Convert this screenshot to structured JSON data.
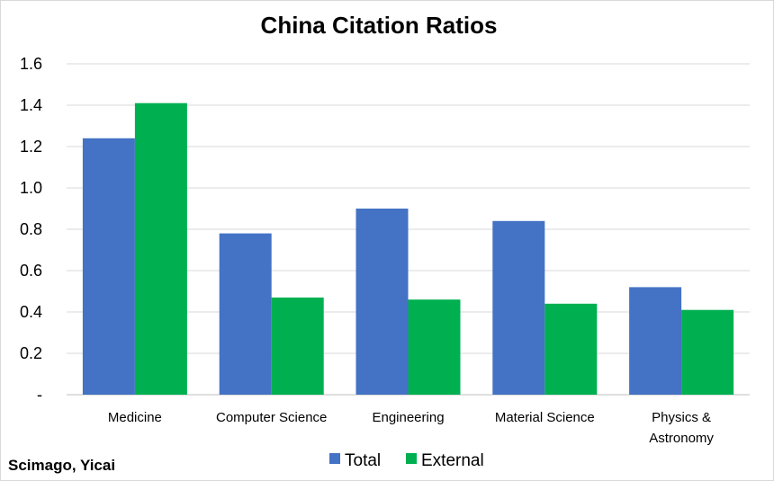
{
  "colors": {
    "total": "#4472c4",
    "external": "#00b050"
  },
  "source_note": "Scimago, Yicai",
  "chart_data": {
    "type": "bar",
    "title": "China Citation Ratios",
    "xlabel": "",
    "ylabel": "",
    "ylim": [
      0,
      1.6
    ],
    "y_ticks": [
      "-",
      "0.2",
      "0.4",
      "0.6",
      "0.8",
      "1.0",
      "1.2",
      "1.4",
      "1.6"
    ],
    "grid": true,
    "legend_position": "bottom",
    "categories": [
      [
        "Medicine"
      ],
      [
        "Computer Science"
      ],
      [
        "Engineering"
      ],
      [
        "Material Science"
      ],
      [
        "Physics &",
        "Astronomy"
      ]
    ],
    "series": [
      {
        "name": "Total",
        "color_key": "total",
        "values": [
          1.24,
          0.78,
          0.9,
          0.84,
          0.52
        ]
      },
      {
        "name": "External",
        "color_key": "external",
        "values": [
          1.41,
          0.47,
          0.46,
          0.44,
          0.41
        ]
      }
    ]
  }
}
